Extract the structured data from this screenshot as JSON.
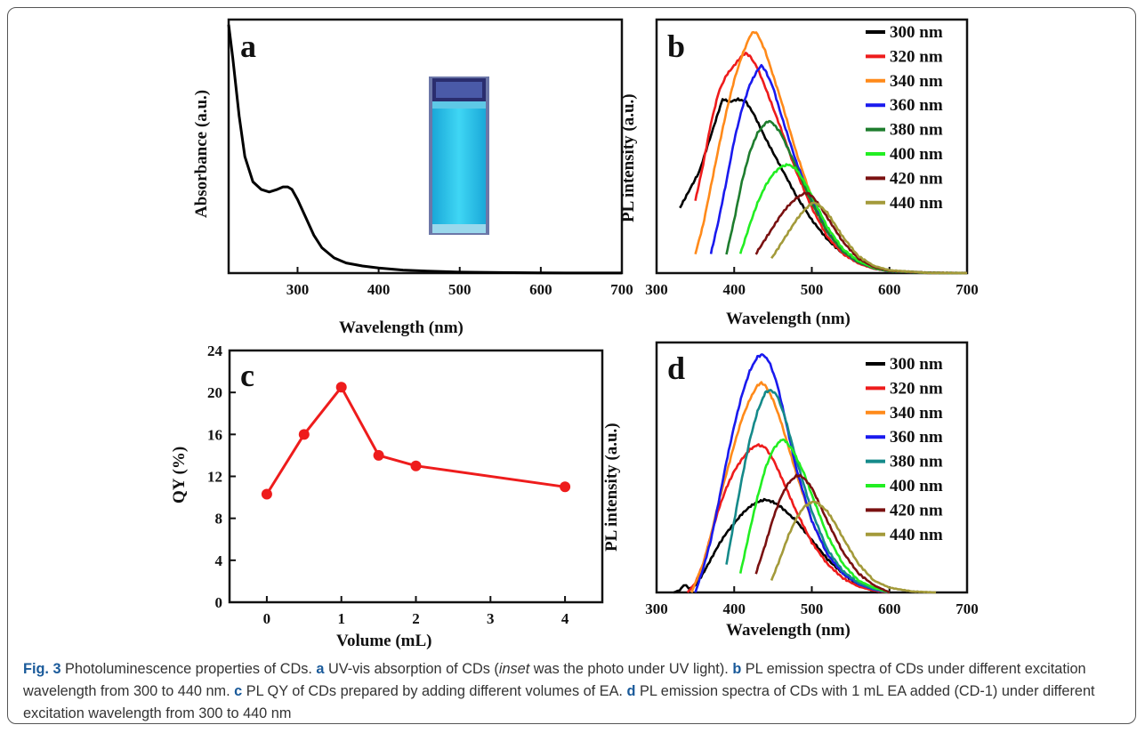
{
  "caption": {
    "fig": "Fig. 3",
    "t1": " Photoluminescence properties of CDs. ",
    "a": "a",
    "t2": " UV-vis absorption of CDs (",
    "inset": "inset",
    "t3": " was the photo under UV light). ",
    "b": "b",
    "t4": " PL emission spectra of CDs under different excitation wavelength from 300 to 440 nm. ",
    "c": "c",
    "t5": " PL QY of CDs prepared by adding different volumes of EA. ",
    "d": "d",
    "t6": " PL emission spectra of CDs with 1 mL EA added (CD-1) under different excitation wavelength from 300 to 440 nm"
  },
  "chart_data": [
    {
      "id": "a",
      "type": "line",
      "panel_label": "a",
      "xlabel": "Wavelength (nm)",
      "ylabel": "Absorbance (a.u.)",
      "xlim": [
        215,
        700
      ],
      "ylim": [
        0,
        1
      ],
      "xticks": [
        300,
        400,
        500,
        600,
        700
      ],
      "yticks": [],
      "series": [
        {
          "color": "#000000",
          "x": [
            215,
            220,
            228,
            235,
            245,
            255,
            265,
            275,
            282,
            288,
            293,
            300,
            310,
            320,
            330,
            345,
            360,
            380,
            400,
            430,
            460,
            500,
            550,
            600,
            650,
            700
          ],
          "y": [
            0.98,
            0.85,
            0.62,
            0.46,
            0.36,
            0.33,
            0.32,
            0.33,
            0.34,
            0.34,
            0.33,
            0.29,
            0.22,
            0.15,
            0.1,
            0.06,
            0.04,
            0.028,
            0.02,
            0.012,
            0.008,
            0.004,
            0.002,
            0.001,
            0.0005,
            0.0003
          ]
        }
      ],
      "inset": "photo of cuvette under UV light"
    },
    {
      "id": "b",
      "type": "line",
      "panel_label": "b",
      "xlabel": "Wavelength (nm)",
      "ylabel": "PL intensity (a.u.)",
      "xlim": [
        300,
        700
      ],
      "ylim": [
        0,
        1.05
      ],
      "xticks": [
        300,
        400,
        500,
        600,
        700
      ],
      "yticks": [],
      "legend": "top-right",
      "series": [
        {
          "name": "300 nm",
          "color": "#000000",
          "x": [
            330,
            340,
            355,
            370,
            385,
            395,
            405,
            415,
            425,
            440,
            460,
            480,
            500,
            520,
            540,
            560,
            580,
            600,
            650,
            700
          ],
          "y": [
            0.27,
            0.33,
            0.42,
            0.57,
            0.72,
            0.71,
            0.72,
            0.71,
            0.66,
            0.56,
            0.44,
            0.32,
            0.22,
            0.14,
            0.08,
            0.045,
            0.02,
            0.01,
            0.002,
            0
          ]
        },
        {
          "name": "320 nm",
          "color": "#ee1c1c",
          "x": [
            350,
            360,
            370,
            380,
            390,
            400,
            410,
            415,
            420,
            430,
            440,
            460,
            480,
            500,
            520,
            540,
            560,
            580,
            600,
            650,
            700
          ],
          "y": [
            0.3,
            0.45,
            0.62,
            0.75,
            0.82,
            0.86,
            0.9,
            0.91,
            0.9,
            0.85,
            0.77,
            0.6,
            0.42,
            0.27,
            0.15,
            0.08,
            0.04,
            0.018,
            0.008,
            0.001,
            0
          ]
        },
        {
          "name": "340 nm",
          "color": "#ff8a1a",
          "x": [
            350,
            360,
            370,
            380,
            390,
            400,
            410,
            420,
            425,
            430,
            440,
            460,
            480,
            500,
            520,
            540,
            560,
            580,
            600,
            650,
            700
          ],
          "y": [
            0.08,
            0.2,
            0.36,
            0.52,
            0.67,
            0.8,
            0.9,
            0.98,
            1.0,
            0.99,
            0.92,
            0.72,
            0.5,
            0.31,
            0.17,
            0.09,
            0.045,
            0.02,
            0.009,
            0.001,
            0
          ]
        },
        {
          "name": "360 nm",
          "color": "#1a1aee",
          "x": [
            370,
            380,
            390,
            400,
            410,
            420,
            430,
            435,
            440,
            450,
            460,
            480,
            500,
            520,
            540,
            560,
            580,
            600,
            650,
            700
          ],
          "y": [
            0.08,
            0.22,
            0.38,
            0.55,
            0.68,
            0.78,
            0.84,
            0.86,
            0.84,
            0.77,
            0.66,
            0.46,
            0.3,
            0.17,
            0.09,
            0.045,
            0.02,
            0.008,
            0.001,
            0
          ]
        },
        {
          "name": "380 nm",
          "color": "#1e7d2e",
          "x": [
            390,
            400,
            410,
            420,
            430,
            440,
            445,
            450,
            460,
            480,
            500,
            520,
            540,
            560,
            580,
            600,
            650,
            700
          ],
          "y": [
            0.08,
            0.22,
            0.38,
            0.5,
            0.58,
            0.62,
            0.63,
            0.62,
            0.58,
            0.44,
            0.29,
            0.17,
            0.09,
            0.045,
            0.02,
            0.008,
            0.001,
            0
          ]
        },
        {
          "name": "400 nm",
          "color": "#22ee22",
          "x": [
            408,
            420,
            430,
            440,
            450,
            460,
            470,
            480,
            490,
            500,
            520,
            540,
            560,
            580,
            600,
            650,
            700
          ],
          "y": [
            0.08,
            0.2,
            0.29,
            0.36,
            0.41,
            0.44,
            0.45,
            0.43,
            0.38,
            0.32,
            0.19,
            0.1,
            0.05,
            0.022,
            0.009,
            0.001,
            0
          ]
        },
        {
          "name": "420 nm",
          "color": "#7a1111",
          "x": [
            428,
            440,
            450,
            460,
            470,
            480,
            490,
            495,
            500,
            510,
            520,
            540,
            560,
            580,
            600,
            650,
            700
          ],
          "y": [
            0.08,
            0.14,
            0.19,
            0.24,
            0.28,
            0.31,
            0.33,
            0.33,
            0.32,
            0.28,
            0.23,
            0.13,
            0.06,
            0.025,
            0.01,
            0.001,
            0
          ]
        },
        {
          "name": "440 nm",
          "color": "#a39a3a",
          "x": [
            448,
            460,
            470,
            480,
            490,
            500,
            505,
            510,
            520,
            530,
            540,
            560,
            580,
            600,
            650,
            700
          ],
          "y": [
            0.06,
            0.12,
            0.17,
            0.22,
            0.26,
            0.29,
            0.29,
            0.28,
            0.25,
            0.2,
            0.15,
            0.07,
            0.03,
            0.012,
            0.001,
            0
          ]
        }
      ]
    },
    {
      "id": "c",
      "type": "line",
      "panel_label": "c",
      "xlabel": "Volume (mL)",
      "ylabel": "QY (%)",
      "xlim": [
        -0.5,
        4.5
      ],
      "ylim": [
        0,
        24
      ],
      "xticks": [
        0,
        1,
        2,
        3,
        4
      ],
      "yticks": [
        0,
        4,
        8,
        12,
        16,
        20,
        24
      ],
      "series": [
        {
          "color": "#ee1c1c",
          "x": [
            0,
            0.5,
            1,
            1.5,
            2,
            4
          ],
          "y": [
            10.3,
            16.0,
            20.5,
            14.0,
            13.0,
            11.0
          ]
        }
      ]
    },
    {
      "id": "d",
      "type": "line",
      "panel_label": "d",
      "xlabel": "Wavelength (nm)",
      "ylabel": "PL intensity (a.u.)",
      "xlim": [
        300,
        700
      ],
      "ylim": [
        0,
        1.05
      ],
      "xticks": [
        300,
        400,
        500,
        600,
        700
      ],
      "yticks": [],
      "legend": "top-right",
      "series": [
        {
          "name": "300 nm",
          "color": "#000000",
          "x": [
            322,
            330,
            335,
            338,
            342,
            350,
            360,
            370,
            380,
            390,
            400,
            410,
            420,
            430,
            440,
            450,
            460,
            480,
            500,
            520,
            540,
            560,
            585
          ],
          "y": [
            0.0,
            0.01,
            0.03,
            0.03,
            0.015,
            0.03,
            0.08,
            0.14,
            0.2,
            0.25,
            0.29,
            0.33,
            0.36,
            0.38,
            0.39,
            0.38,
            0.36,
            0.3,
            0.22,
            0.14,
            0.08,
            0.03,
            0.0
          ]
        },
        {
          "name": "320 nm",
          "color": "#ee1c1c",
          "x": [
            340,
            350,
            360,
            370,
            380,
            390,
            400,
            410,
            420,
            430,
            440,
            450,
            460,
            480,
            500,
            520,
            540,
            560,
            580,
            600
          ],
          "y": [
            0.0,
            0.04,
            0.12,
            0.24,
            0.35,
            0.44,
            0.51,
            0.56,
            0.6,
            0.62,
            0.61,
            0.56,
            0.49,
            0.34,
            0.21,
            0.12,
            0.06,
            0.025,
            0.008,
            0
          ]
        },
        {
          "name": "340 nm",
          "color": "#ff8a1a",
          "x": [
            345,
            360,
            370,
            380,
            390,
            400,
            410,
            420,
            430,
            435,
            440,
            450,
            460,
            480,
            500,
            520,
            540,
            560,
            580,
            600
          ],
          "y": [
            0.0,
            0.12,
            0.24,
            0.38,
            0.5,
            0.62,
            0.73,
            0.81,
            0.87,
            0.88,
            0.87,
            0.81,
            0.72,
            0.5,
            0.3,
            0.16,
            0.08,
            0.035,
            0.012,
            0
          ]
        },
        {
          "name": "360 nm",
          "color": "#1a1aee",
          "x": [
            350,
            360,
            370,
            380,
            390,
            400,
            410,
            420,
            430,
            437,
            445,
            455,
            465,
            480,
            500,
            520,
            540,
            560,
            580,
            600
          ],
          "y": [
            0.0,
            0.1,
            0.22,
            0.38,
            0.55,
            0.7,
            0.83,
            0.93,
            0.99,
            1.0,
            0.97,
            0.88,
            0.74,
            0.52,
            0.3,
            0.16,
            0.08,
            0.035,
            0.012,
            0
          ]
        },
        {
          "name": "380 nm",
          "color": "#158a8a",
          "x": [
            390,
            400,
            410,
            420,
            430,
            440,
            447,
            455,
            465,
            480,
            500,
            520,
            540,
            560,
            580,
            600
          ],
          "y": [
            0.12,
            0.3,
            0.48,
            0.64,
            0.76,
            0.84,
            0.85,
            0.83,
            0.74,
            0.56,
            0.34,
            0.18,
            0.09,
            0.04,
            0.015,
            0
          ]
        },
        {
          "name": "400 nm",
          "color": "#22ee22",
          "x": [
            408,
            420,
            430,
            440,
            450,
            460,
            465,
            475,
            490,
            500,
            520,
            540,
            560,
            580,
            600
          ],
          "y": [
            0.08,
            0.26,
            0.4,
            0.52,
            0.6,
            0.64,
            0.64,
            0.6,
            0.5,
            0.41,
            0.24,
            0.12,
            0.05,
            0.02,
            0
          ]
        },
        {
          "name": "420 nm",
          "color": "#7a1111",
          "x": [
            428,
            440,
            450,
            460,
            470,
            480,
            485,
            490,
            500,
            510,
            520,
            540,
            560,
            580,
            600
          ],
          "y": [
            0.08,
            0.2,
            0.31,
            0.4,
            0.46,
            0.49,
            0.49,
            0.48,
            0.44,
            0.37,
            0.3,
            0.17,
            0.08,
            0.03,
            0
          ]
        },
        {
          "name": "440 nm",
          "color": "#a39a3a",
          "x": [
            448,
            460,
            470,
            480,
            490,
            500,
            505,
            510,
            520,
            530,
            540,
            560,
            580,
            600,
            630,
            660
          ],
          "y": [
            0.05,
            0.15,
            0.24,
            0.31,
            0.36,
            0.38,
            0.38,
            0.37,
            0.34,
            0.29,
            0.23,
            0.12,
            0.05,
            0.02,
            0.004,
            0
          ]
        }
      ]
    }
  ]
}
